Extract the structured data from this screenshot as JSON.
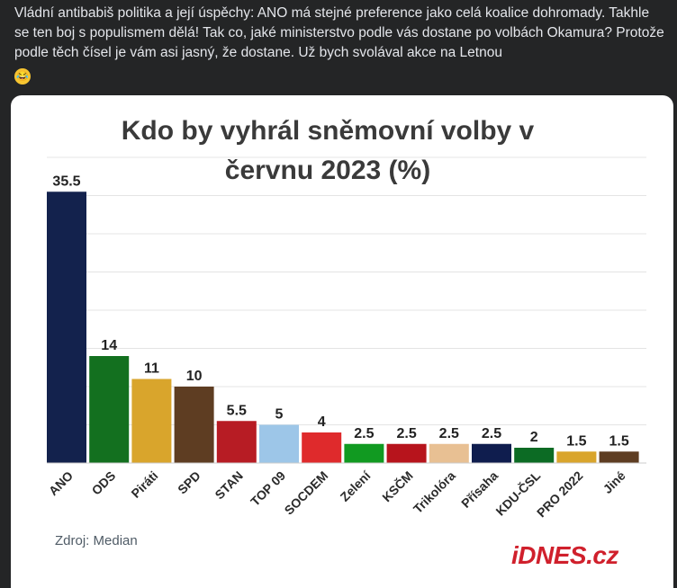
{
  "post": {
    "text": "Vládní antibabiš politika a její úspěchy: ANO má stejné preference jako celá koalice dohromady. Takhle se ten boj s populismem dělá! Tak co, jaké ministerstvo podle vás dostane po volbách Okamura? Protože podle těch čísel je vám asi jasný, že dostane. Už bych svolával akce na Letnou",
    "emoji": "😂",
    "emoji_icon": "laughing-tears-emoji-icon"
  },
  "image": {
    "source_note": "Zdroj: Median",
    "logo": "iDNES.cz"
  },
  "chart_data": {
    "type": "bar",
    "title": "Kdo by vyhrál sněmovní volby v červnu 2023 (%)",
    "xlabel": "",
    "ylabel": "",
    "ylim": [
      0,
      40
    ],
    "grid": true,
    "categories": [
      "ANO",
      "ODS",
      "Piráti",
      "SPD",
      "STAN",
      "TOP 09",
      "SOCDEM",
      "Zelení",
      "KSČM",
      "Trikolóra",
      "Přísaha",
      "KDU-ČSL",
      "PRO 2022",
      "Jiné"
    ],
    "values": [
      35.5,
      14,
      11,
      10,
      5.5,
      5,
      4,
      2.5,
      2.5,
      2.5,
      2.5,
      2,
      1.5,
      1.5
    ],
    "value_labels": [
      "35.5",
      "14",
      "11",
      "10",
      "5.5",
      "5",
      "4",
      "2.5",
      "2.5",
      "2.5",
      "2.5",
      "2",
      "1.5",
      "1.5"
    ],
    "colors": [
      "#13224d",
      "#13701f",
      "#d9a52c",
      "#5e3d22",
      "#b71c24",
      "#9dc6e8",
      "#df2a2c",
      "#119a21",
      "#b7141c",
      "#e8c093",
      "#0f1d4e",
      "#0c6b24",
      "#d9a52c",
      "#5e3d22"
    ]
  }
}
